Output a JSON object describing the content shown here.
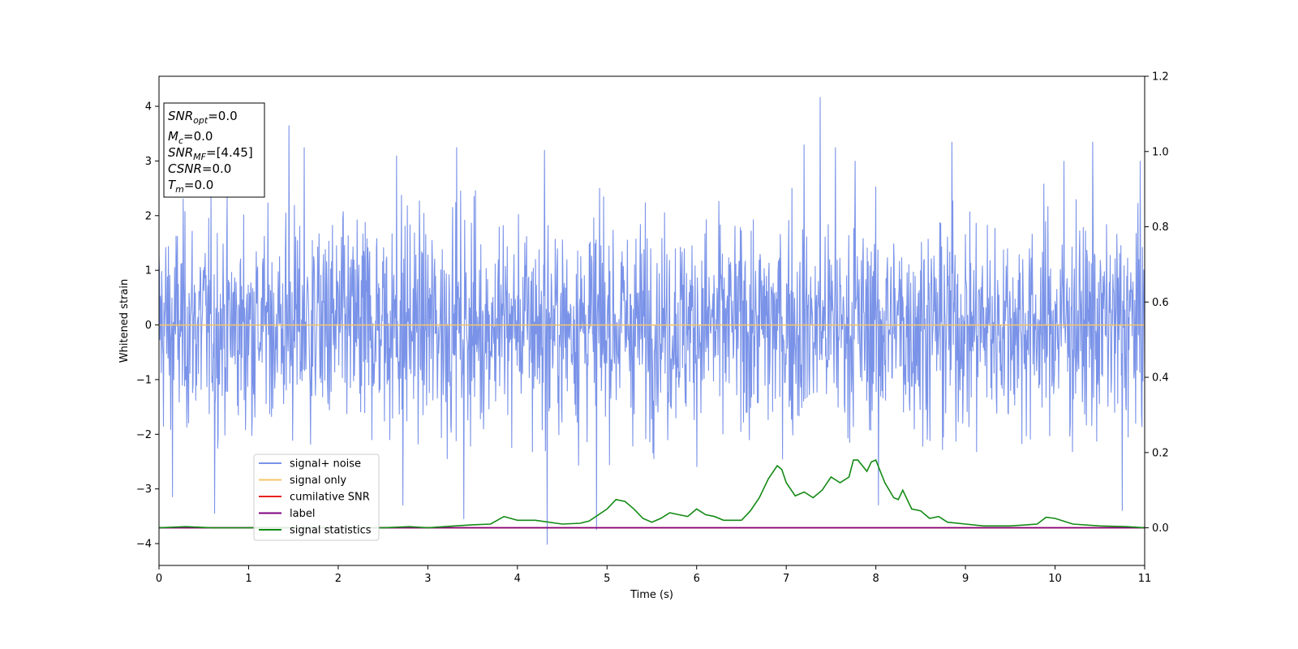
{
  "chart_data": {
    "type": "line",
    "title": "",
    "xlabel": "Time (s)",
    "ylabel": "Whitened strain",
    "xlim": [
      0,
      11
    ],
    "ylim_left": [
      -4.4,
      4.55
    ],
    "ylim_right": [
      -0.1,
      1.2
    ],
    "x_ticks": [
      0,
      1,
      2,
      3,
      4,
      5,
      6,
      7,
      8,
      9,
      10,
      11
    ],
    "x_tick_labels": [
      "0",
      "1",
      "2",
      "3",
      "4",
      "5",
      "6",
      "7",
      "8",
      "9",
      "10",
      "11"
    ],
    "y_left_ticks": [
      -4,
      -3,
      -2,
      -1,
      0,
      1,
      2,
      3,
      4
    ],
    "y_left_tick_labels": [
      "−4",
      "−3",
      "−2",
      "−1",
      "0",
      "1",
      "2",
      "3",
      "4"
    ],
    "y_right_ticks": [
      0.0,
      0.2,
      0.4,
      0.6,
      0.8,
      1.0,
      1.2
    ],
    "y_right_tick_labels": [
      "0.0",
      "0.2",
      "0.4",
      "0.6",
      "0.8",
      "1.0",
      "1.2"
    ],
    "grid": false,
    "legend_position": "lower-left",
    "annotation": {
      "lines": [
        {
          "base": "SNR",
          "sub": "opt",
          "rest": "=0.0"
        },
        {
          "base": "M",
          "sub": "c",
          "rest": "=0.0"
        },
        {
          "base": "SNR",
          "sub": "MF",
          "rest": "=[4.45]"
        },
        {
          "base": "CSNR",
          "sub": "",
          "rest": "=0.0"
        },
        {
          "base": "T",
          "sub": "m",
          "rest": "=0.0"
        }
      ]
    },
    "series": [
      {
        "name": "signal+ noise",
        "axis": "left",
        "color": "#7a93e8",
        "noise": {
          "sigma": 1.0,
          "typical_range": [
            -2.6,
            2.6
          ],
          "samples": 2200
        },
        "spikes": [
          {
            "x": 1.45,
            "y": 3.65
          },
          {
            "x": 7.38,
            "y": 4.17
          },
          {
            "x": 4.33,
            "y": -4.02
          },
          {
            "x": 4.88,
            "y": -3.75
          },
          {
            "x": 0.62,
            "y": -3.45
          },
          {
            "x": 3.4,
            "y": -3.55
          },
          {
            "x": 1.62,
            "y": 3.25
          },
          {
            "x": 3.32,
            "y": 3.25
          },
          {
            "x": 7.2,
            "y": 3.3
          },
          {
            "x": 7.55,
            "y": 3.25
          },
          {
            "x": 8.85,
            "y": 3.35
          },
          {
            "x": 10.42,
            "y": 3.35
          },
          {
            "x": 10.75,
            "y": -3.4
          },
          {
            "x": 8.03,
            "y": -3.3
          },
          {
            "x": 2.72,
            "y": -3.3
          },
          {
            "x": 0.15,
            "y": -3.15
          },
          {
            "x": 4.3,
            "y": 3.2
          },
          {
            "x": 7.77,
            "y": 3.0
          },
          {
            "x": 10.95,
            "y": 3.0
          },
          {
            "x": 10.1,
            "y": 3.0
          },
          {
            "x": 2.65,
            "y": 3.1
          }
        ]
      },
      {
        "name": "signal only",
        "axis": "left",
        "color": "#f5c56a",
        "x": [
          0,
          11
        ],
        "y": [
          0,
          0
        ]
      },
      {
        "name": "cumilative SNR",
        "axis": "right",
        "color": "#e8231e",
        "x": [
          0,
          11
        ],
        "y": [
          0,
          0
        ]
      },
      {
        "name": "label",
        "axis": "right",
        "color": "#800080",
        "x": [
          0,
          11
        ],
        "y": [
          0,
          0
        ]
      },
      {
        "name": "signal statistics",
        "axis": "right",
        "color": "#138a14",
        "x": [
          0,
          0.3,
          0.6,
          1.0,
          1.5,
          2.0,
          2.5,
          2.8,
          3.0,
          3.3,
          3.5,
          3.7,
          3.85,
          4.0,
          4.2,
          4.5,
          4.7,
          4.8,
          5.0,
          5.1,
          5.2,
          5.3,
          5.4,
          5.5,
          5.6,
          5.7,
          5.8,
          5.9,
          6.0,
          6.1,
          6.2,
          6.3,
          6.5,
          6.6,
          6.7,
          6.8,
          6.9,
          6.95,
          7.0,
          7.1,
          7.2,
          7.3,
          7.4,
          7.5,
          7.6,
          7.7,
          7.75,
          7.8,
          7.9,
          7.95,
          8.0,
          8.1,
          8.2,
          8.25,
          8.3,
          8.4,
          8.5,
          8.6,
          8.7,
          8.8,
          9.0,
          9.2,
          9.5,
          9.8,
          9.9,
          10.0,
          10.2,
          10.5,
          10.8,
          11.0
        ],
        "y": [
          0.0,
          0.003,
          0.0,
          0.0,
          0.0,
          0.0,
          0.0,
          0.003,
          0.0,
          0.005,
          0.008,
          0.01,
          0.03,
          0.02,
          0.02,
          0.01,
          0.012,
          0.018,
          0.05,
          0.075,
          0.07,
          0.05,
          0.025,
          0.015,
          0.025,
          0.04,
          0.035,
          0.03,
          0.05,
          0.035,
          0.03,
          0.02,
          0.02,
          0.045,
          0.08,
          0.13,
          0.165,
          0.155,
          0.12,
          0.085,
          0.095,
          0.08,
          0.1,
          0.135,
          0.12,
          0.135,
          0.18,
          0.18,
          0.15,
          0.175,
          0.18,
          0.12,
          0.08,
          0.075,
          0.1,
          0.05,
          0.045,
          0.025,
          0.03,
          0.015,
          0.01,
          0.005,
          0.005,
          0.01,
          0.028,
          0.025,
          0.01,
          0.005,
          0.003,
          0.0
        ]
      }
    ]
  }
}
